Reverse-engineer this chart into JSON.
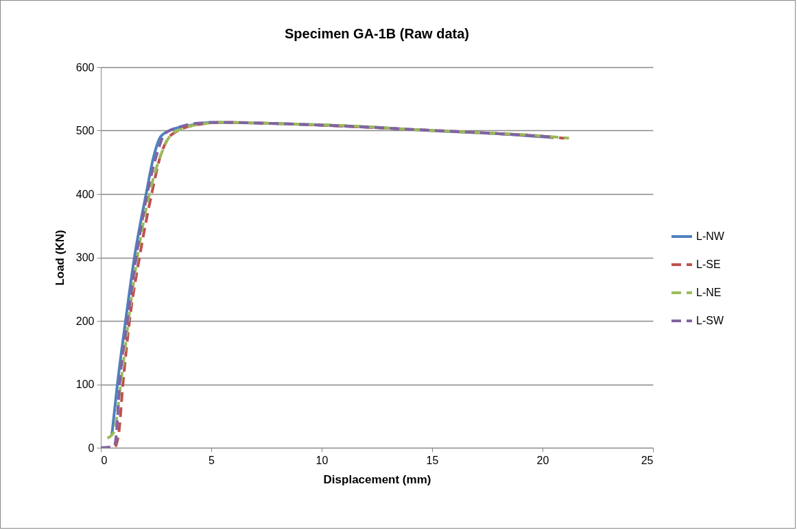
{
  "chart_data": {
    "type": "line",
    "title": "Specimen GA-1B (Raw data)",
    "xlabel": "Displacement (mm)",
    "ylabel": "Load (KN)",
    "xlim": [
      0,
      25
    ],
    "xticks": [
      0,
      5,
      10,
      15,
      20,
      25
    ],
    "ylim": [
      0,
      600
    ],
    "yticks": [
      0,
      100,
      200,
      300,
      400,
      500,
      600
    ],
    "grid": "y",
    "legend": "right",
    "series": [
      {
        "name": "L-NW",
        "color": "#4f81bd",
        "line_style": "solid",
        "x": [
          0.5,
          0.75,
          1.12,
          1.52,
          2.05,
          2.4,
          2.7,
          3.1,
          4,
          5,
          7,
          10,
          13,
          15,
          18,
          20.5
        ],
        "values": [
          20,
          100,
          200,
          300,
          400,
          460,
          490,
          500,
          508,
          513,
          512,
          509,
          504,
          500,
          495,
          489
        ]
      },
      {
        "name": "L-SE",
        "color": "#c0504d",
        "line_style": "dashed",
        "x": [
          0,
          0.6,
          0.8,
          1.0,
          1.3,
          1.75,
          2.3,
          2.7,
          3.0,
          3.5,
          4.5,
          5.5,
          8,
          11,
          14,
          17,
          20,
          21
        ],
        "values": [
          0,
          0,
          20,
          100,
          200,
          300,
          400,
          460,
          485,
          500,
          510,
          513,
          511,
          507,
          502,
          497,
          491,
          488
        ]
      },
      {
        "name": "L-NE",
        "color": "#9bbb59",
        "line_style": "dashed",
        "x": [
          0.3,
          0.6,
          0.9,
          1.25,
          1.65,
          2.2,
          2.7,
          3.1,
          3.6,
          4.5,
          5.5,
          8,
          11,
          14,
          17,
          19,
          21.2
        ],
        "values": [
          15,
          25,
          100,
          200,
          300,
          400,
          460,
          490,
          502,
          510,
          513,
          511,
          508,
          502,
          497,
          494,
          488
        ]
      },
      {
        "name": "L-SW",
        "color": "#8064a2",
        "line_style": "dashed",
        "x": [
          0,
          0.6,
          0.7,
          0.85,
          1.2,
          1.6,
          2.1,
          2.6,
          2.9,
          3.5,
          4.5,
          5.5,
          8,
          11,
          14,
          17,
          20.5
        ],
        "values": [
          0,
          2,
          20,
          100,
          200,
          300,
          400,
          470,
          495,
          505,
          512,
          513,
          511,
          507,
          502,
          497,
          490
        ]
      }
    ]
  }
}
